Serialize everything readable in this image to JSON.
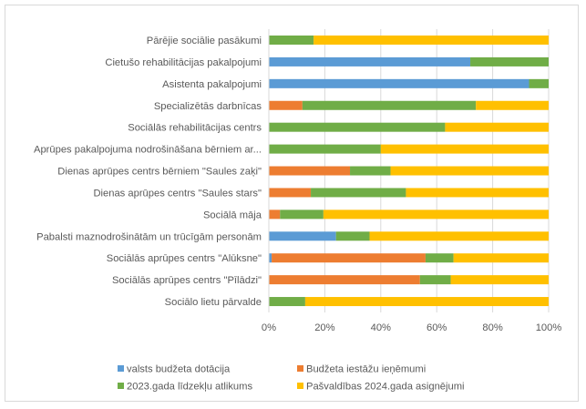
{
  "chart_data": {
    "type": "bar",
    "orientation": "horizontal",
    "stacked": "percent",
    "title": "",
    "xlabel": "",
    "ylabel": "",
    "xlim": [
      0,
      100
    ],
    "grid": true,
    "legend_position": "bottom",
    "x_ticks": [
      "0%",
      "20%",
      "40%",
      "60%",
      "80%",
      "100%"
    ],
    "categories": [
      "Pārējie sociālie pasākumi",
      "Cietušo rehabilitācijas pakalpojumi",
      "Asistenta pakalpojumi",
      "Specializētās darbnīcas",
      "Sociālās rehabilitācijas centrs",
      "Aprūpes pakalpojuma nodrošināšana bērniem ar...",
      "Dienas aprūpes centrs bērniem \"Saules zaķi\"",
      "Dienas aprūpes centrs \"Saules stars\"",
      "Sociālā māja",
      "Pabalsti maznodrošinātām un trūcīgām personām",
      "Sociālās aprūpes centrs \"Alūksne\"",
      "Sociālās aprūpes centrs \"Pīlādzi\"",
      "Sociālo lietu pārvalde"
    ],
    "series": [
      {
        "name": "valsts budžeta dotācija",
        "color": "#5b9bd5",
        "values": [
          0,
          72,
          93,
          0,
          0,
          0,
          0,
          0,
          0,
          24,
          1,
          0,
          0
        ]
      },
      {
        "name": "Budžeta iestāžu ieņēmumi",
        "color": "#ed7d31",
        "values": [
          0,
          0,
          0,
          12,
          0,
          0,
          29,
          15,
          4,
          0,
          55,
          54,
          0
        ]
      },
      {
        "name": "2023.gada līdzekļu atlikums",
        "color": "#70ad47",
        "values": [
          16,
          28,
          7,
          62,
          63,
          40,
          14.5,
          34,
          15.5,
          12,
          10,
          11,
          13
        ]
      },
      {
        "name": "Pašvaldības 2024.gada asignējumi",
        "color": "#ffc000",
        "values": [
          84,
          0,
          0,
          26,
          37,
          60,
          56.5,
          51,
          80.5,
          64,
          34,
          35,
          87
        ]
      }
    ]
  },
  "colors": {
    "gridline": "#d9d9d9",
    "text": "#595959",
    "frame": "#d9d9d9"
  }
}
